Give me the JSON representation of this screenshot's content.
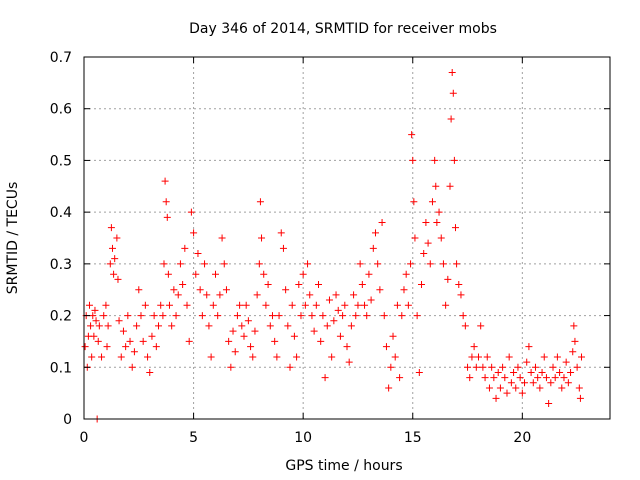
{
  "chart_data": {
    "type": "scatter",
    "title": "Day 346 of 2014, SRMTID for receiver mobs",
    "xlabel": "GPS time / hours",
    "ylabel": "SRMTID / TECUs",
    "xlim": [
      0,
      24
    ],
    "ylim": [
      0,
      0.7
    ],
    "xticks": [
      0,
      5,
      10,
      15,
      20
    ],
    "yticks": [
      0,
      0.1,
      0.2,
      0.3,
      0.4,
      0.5,
      0.6,
      0.7
    ],
    "xtick_labels": [
      "0",
      "5",
      "10",
      "15",
      "20"
    ],
    "ytick_labels": [
      "0",
      "0.1",
      "0.2",
      "0.3",
      "0.4",
      "0.5",
      "0.6",
      "0.7"
    ],
    "grid": true,
    "marker": "+",
    "color": "#ff0000",
    "series": [
      {
        "name": "mobs",
        "points": [
          [
            0.05,
            0.14
          ],
          [
            0.1,
            0.2
          ],
          [
            0.15,
            0.1
          ],
          [
            0.2,
            0.16
          ],
          [
            0.25,
            0.22
          ],
          [
            0.3,
            0.18
          ],
          [
            0.35,
            0.12
          ],
          [
            0.4,
            0.2
          ],
          [
            0.45,
            0.16
          ],
          [
            0.5,
            0.21
          ],
          [
            0.55,
            0.19
          ],
          [
            0.6,
            0.0
          ],
          [
            0.65,
            0.15
          ],
          [
            0.7,
            0.18
          ],
          [
            0.8,
            0.12
          ],
          [
            0.9,
            0.2
          ],
          [
            1.0,
            0.22
          ],
          [
            1.05,
            0.14
          ],
          [
            1.1,
            0.18
          ],
          [
            1.2,
            0.3
          ],
          [
            1.25,
            0.37
          ],
          [
            1.3,
            0.33
          ],
          [
            1.35,
            0.28
          ],
          [
            1.4,
            0.31
          ],
          [
            1.5,
            0.35
          ],
          [
            1.55,
            0.27
          ],
          [
            1.6,
            0.19
          ],
          [
            1.7,
            0.12
          ],
          [
            1.8,
            0.17
          ],
          [
            1.9,
            0.14
          ],
          [
            2.0,
            0.2
          ],
          [
            2.1,
            0.15
          ],
          [
            2.2,
            0.1
          ],
          [
            2.3,
            0.13
          ],
          [
            2.4,
            0.18
          ],
          [
            2.5,
            0.25
          ],
          [
            2.6,
            0.2
          ],
          [
            2.7,
            0.15
          ],
          [
            2.8,
            0.22
          ],
          [
            2.9,
            0.12
          ],
          [
            3.0,
            0.09
          ],
          [
            3.1,
            0.16
          ],
          [
            3.2,
            0.2
          ],
          [
            3.3,
            0.14
          ],
          [
            3.4,
            0.18
          ],
          [
            3.5,
            0.22
          ],
          [
            3.6,
            0.2
          ],
          [
            3.65,
            0.3
          ],
          [
            3.7,
            0.46
          ],
          [
            3.75,
            0.42
          ],
          [
            3.8,
            0.39
          ],
          [
            3.85,
            0.28
          ],
          [
            3.9,
            0.22
          ],
          [
            4.0,
            0.18
          ],
          [
            4.1,
            0.25
          ],
          [
            4.2,
            0.2
          ],
          [
            4.3,
            0.24
          ],
          [
            4.4,
            0.3
          ],
          [
            4.5,
            0.26
          ],
          [
            4.6,
            0.33
          ],
          [
            4.7,
            0.22
          ],
          [
            4.8,
            0.15
          ],
          [
            4.9,
            0.4
          ],
          [
            5.0,
            0.36
          ],
          [
            5.1,
            0.28
          ],
          [
            5.2,
            0.32
          ],
          [
            5.3,
            0.25
          ],
          [
            5.4,
            0.2
          ],
          [
            5.5,
            0.3
          ],
          [
            5.6,
            0.24
          ],
          [
            5.7,
            0.18
          ],
          [
            5.8,
            0.12
          ],
          [
            5.9,
            0.22
          ],
          [
            6.0,
            0.28
          ],
          [
            6.1,
            0.2
          ],
          [
            6.2,
            0.24
          ],
          [
            6.3,
            0.35
          ],
          [
            6.4,
            0.3
          ],
          [
            6.5,
            0.25
          ],
          [
            6.6,
            0.15
          ],
          [
            6.7,
            0.1
          ],
          [
            6.8,
            0.17
          ],
          [
            6.9,
            0.13
          ],
          [
            7.0,
            0.2
          ],
          [
            7.1,
            0.22
          ],
          [
            7.2,
            0.18
          ],
          [
            7.3,
            0.16
          ],
          [
            7.4,
            0.22
          ],
          [
            7.5,
            0.19
          ],
          [
            7.6,
            0.14
          ],
          [
            7.7,
            0.12
          ],
          [
            7.8,
            0.17
          ],
          [
            7.9,
            0.24
          ],
          [
            8.0,
            0.3
          ],
          [
            8.05,
            0.42
          ],
          [
            8.1,
            0.35
          ],
          [
            8.2,
            0.28
          ],
          [
            8.3,
            0.22
          ],
          [
            8.4,
            0.26
          ],
          [
            8.5,
            0.18
          ],
          [
            8.6,
            0.2
          ],
          [
            8.7,
            0.15
          ],
          [
            8.8,
            0.12
          ],
          [
            8.9,
            0.2
          ],
          [
            9.0,
            0.36
          ],
          [
            9.1,
            0.33
          ],
          [
            9.2,
            0.25
          ],
          [
            9.3,
            0.18
          ],
          [
            9.4,
            0.1
          ],
          [
            9.5,
            0.22
          ],
          [
            9.6,
            0.16
          ],
          [
            9.7,
            0.12
          ],
          [
            9.8,
            0.26
          ],
          [
            9.9,
            0.2
          ],
          [
            10.0,
            0.28
          ],
          [
            10.1,
            0.22
          ],
          [
            10.2,
            0.3
          ],
          [
            10.3,
            0.24
          ],
          [
            10.4,
            0.2
          ],
          [
            10.5,
            0.17
          ],
          [
            10.6,
            0.22
          ],
          [
            10.7,
            0.26
          ],
          [
            10.8,
            0.15
          ],
          [
            10.9,
            0.2
          ],
          [
            11.0,
            0.08
          ],
          [
            11.1,
            0.18
          ],
          [
            11.2,
            0.23
          ],
          [
            11.3,
            0.12
          ],
          [
            11.4,
            0.19
          ],
          [
            11.5,
            0.24
          ],
          [
            11.6,
            0.21
          ],
          [
            11.7,
            0.16
          ],
          [
            11.8,
            0.2
          ],
          [
            11.9,
            0.22
          ],
          [
            12.0,
            0.14
          ],
          [
            12.1,
            0.11
          ],
          [
            12.2,
            0.18
          ],
          [
            12.3,
            0.24
          ],
          [
            12.4,
            0.2
          ],
          [
            12.5,
            0.22
          ],
          [
            12.6,
            0.3
          ],
          [
            12.7,
            0.26
          ],
          [
            12.8,
            0.22
          ],
          [
            12.9,
            0.2
          ],
          [
            13.0,
            0.28
          ],
          [
            13.1,
            0.23
          ],
          [
            13.2,
            0.33
          ],
          [
            13.3,
            0.36
          ],
          [
            13.4,
            0.3
          ],
          [
            13.5,
            0.25
          ],
          [
            13.6,
            0.38
          ],
          [
            13.7,
            0.2
          ],
          [
            13.8,
            0.14
          ],
          [
            13.9,
            0.06
          ],
          [
            14.0,
            0.1
          ],
          [
            14.1,
            0.16
          ],
          [
            14.2,
            0.12
          ],
          [
            14.3,
            0.22
          ],
          [
            14.4,
            0.08
          ],
          [
            14.5,
            0.2
          ],
          [
            14.6,
            0.25
          ],
          [
            14.7,
            0.28
          ],
          [
            14.8,
            0.22
          ],
          [
            14.9,
            0.3
          ],
          [
            14.95,
            0.55
          ],
          [
            15.0,
            0.5
          ],
          [
            15.05,
            0.42
          ],
          [
            15.1,
            0.35
          ],
          [
            15.2,
            0.2
          ],
          [
            15.3,
            0.09
          ],
          [
            15.4,
            0.26
          ],
          [
            15.5,
            0.32
          ],
          [
            15.6,
            0.38
          ],
          [
            15.7,
            0.34
          ],
          [
            15.8,
            0.3
          ],
          [
            15.9,
            0.42
          ],
          [
            16.0,
            0.5
          ],
          [
            16.05,
            0.45
          ],
          [
            16.1,
            0.38
          ],
          [
            16.2,
            0.4
          ],
          [
            16.3,
            0.35
          ],
          [
            16.4,
            0.3
          ],
          [
            16.5,
            0.22
          ],
          [
            16.6,
            0.27
          ],
          [
            16.7,
            0.45
          ],
          [
            16.75,
            0.58
          ],
          [
            16.8,
            0.67
          ],
          [
            16.85,
            0.63
          ],
          [
            16.9,
            0.5
          ],
          [
            16.95,
            0.37
          ],
          [
            17.0,
            0.3
          ],
          [
            17.1,
            0.26
          ],
          [
            17.2,
            0.24
          ],
          [
            17.3,
            0.2
          ],
          [
            17.4,
            0.18
          ],
          [
            17.5,
            0.1
          ],
          [
            17.6,
            0.08
          ],
          [
            17.7,
            0.12
          ],
          [
            17.8,
            0.14
          ],
          [
            17.9,
            0.1
          ],
          [
            18.0,
            0.12
          ],
          [
            18.1,
            0.18
          ],
          [
            18.2,
            0.1
          ],
          [
            18.3,
            0.08
          ],
          [
            18.4,
            0.12
          ],
          [
            18.5,
            0.06
          ],
          [
            18.6,
            0.1
          ],
          [
            18.7,
            0.08
          ],
          [
            18.8,
            0.04
          ],
          [
            18.9,
            0.09
          ],
          [
            19.0,
            0.06
          ],
          [
            19.1,
            0.1
          ],
          [
            19.2,
            0.08
          ],
          [
            19.3,
            0.05
          ],
          [
            19.4,
            0.12
          ],
          [
            19.5,
            0.07
          ],
          [
            19.6,
            0.09
          ],
          [
            19.7,
            0.06
          ],
          [
            19.8,
            0.1
          ],
          [
            19.9,
            0.08
          ],
          [
            20.0,
            0.05
          ],
          [
            20.1,
            0.07
          ],
          [
            20.2,
            0.11
          ],
          [
            20.3,
            0.14
          ],
          [
            20.4,
            0.09
          ],
          [
            20.5,
            0.07
          ],
          [
            20.6,
            0.1
          ],
          [
            20.7,
            0.08
          ],
          [
            20.8,
            0.06
          ],
          [
            20.9,
            0.09
          ],
          [
            21.0,
            0.12
          ],
          [
            21.1,
            0.08
          ],
          [
            21.2,
            0.03
          ],
          [
            21.3,
            0.07
          ],
          [
            21.4,
            0.1
          ],
          [
            21.5,
            0.08
          ],
          [
            21.6,
            0.12
          ],
          [
            21.7,
            0.09
          ],
          [
            21.8,
            0.06
          ],
          [
            21.9,
            0.08
          ],
          [
            22.0,
            0.11
          ],
          [
            22.1,
            0.07
          ],
          [
            22.2,
            0.09
          ],
          [
            22.3,
            0.13
          ],
          [
            22.35,
            0.18
          ],
          [
            22.4,
            0.15
          ],
          [
            22.5,
            0.1
          ],
          [
            22.6,
            0.06
          ],
          [
            22.65,
            0.04
          ],
          [
            22.7,
            0.12
          ]
        ]
      }
    ]
  }
}
